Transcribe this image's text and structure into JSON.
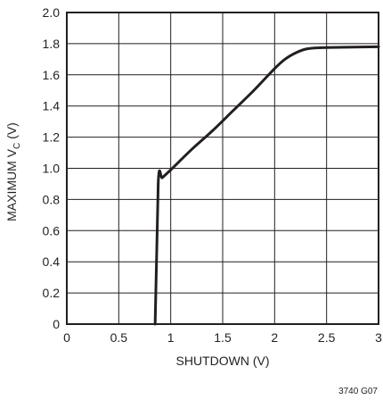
{
  "chart_data": {
    "type": "line",
    "title": "",
    "xlabel": "SHUTDOWN (V)",
    "ylabel": {
      "main": "MAXIMUM V",
      "sub": "C",
      "unit": " (V)"
    },
    "xlim": [
      0,
      3
    ],
    "ylim": [
      0,
      2.0
    ],
    "x_ticks": [
      {
        "value": 0,
        "label": "0"
      },
      {
        "value": 0.5,
        "label": "0.5"
      },
      {
        "value": 1,
        "label": "1"
      },
      {
        "value": 1.5,
        "label": "1.5"
      },
      {
        "value": 2,
        "label": "2"
      },
      {
        "value": 2.5,
        "label": "2.5"
      },
      {
        "value": 3,
        "label": "3"
      }
    ],
    "y_ticks": [
      {
        "value": 0,
        "label": "0"
      },
      {
        "value": 0.2,
        "label": "0.2"
      },
      {
        "value": 0.4,
        "label": "0.4"
      },
      {
        "value": 0.6,
        "label": "0.6"
      },
      {
        "value": 0.8,
        "label": "0.8"
      },
      {
        "value": 1.0,
        "label": "1.0"
      },
      {
        "value": 1.2,
        "label": "1.2"
      },
      {
        "value": 1.4,
        "label": "1.4"
      },
      {
        "value": 1.6,
        "label": "1.6"
      },
      {
        "value": 1.8,
        "label": "1.8"
      },
      {
        "value": 2.0,
        "label": "2.0"
      }
    ],
    "grid": true,
    "legend": "none",
    "series": [
      {
        "color": "#231f20",
        "x": [
          0.85,
          0.88,
          0.92,
          1.0,
          1.2,
          1.4,
          1.6,
          1.8,
          2.0,
          2.1,
          2.2,
          2.3,
          2.4,
          2.5,
          2.7,
          3.0
        ],
        "y": [
          0.0,
          0.91,
          0.94,
          0.99,
          1.12,
          1.24,
          1.37,
          1.5,
          1.64,
          1.7,
          1.74,
          1.765,
          1.773,
          1.775,
          1.777,
          1.78
        ]
      }
    ],
    "figure_id": "3740 G07"
  }
}
